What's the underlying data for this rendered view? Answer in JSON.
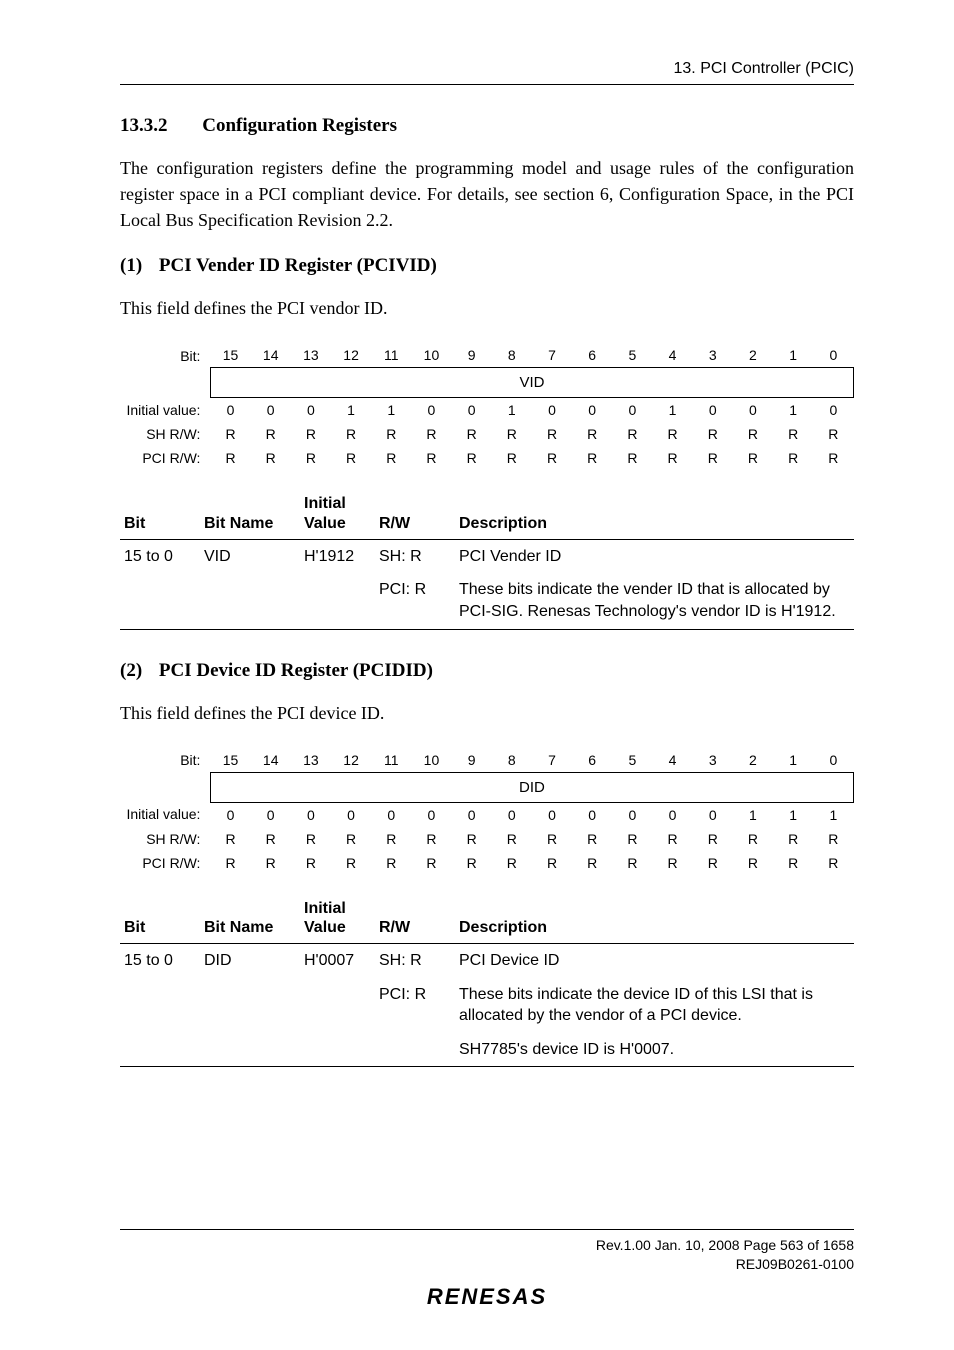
{
  "header": {
    "top_right": "13.   PCI Controller (PCIC)"
  },
  "section": {
    "number": "13.3.2",
    "title": "Configuration Registers",
    "paragraph": "The configuration registers define the programming model and usage rules of the configuration register space in a PCI compliant device. For details, see section 6, Configuration Space, in the PCI Local Bus Specification Revision 2.2."
  },
  "reg1": {
    "heading_num": "(1)",
    "heading_title": "PCI Vender ID Register (PCIVID)",
    "intro": "This field defines the PCI vendor ID.",
    "bit_label": "Bit:",
    "bit_numbers": [
      "15",
      "14",
      "13",
      "12",
      "11",
      "10",
      "9",
      "8",
      "7",
      "6",
      "5",
      "4",
      "3",
      "2",
      "1",
      "0"
    ],
    "field_name": "VID",
    "init_label": "Initial value:",
    "init_values": [
      "0",
      "0",
      "0",
      "1",
      "1",
      "0",
      "0",
      "1",
      "0",
      "0",
      "0",
      "1",
      "0",
      "0",
      "1",
      "0"
    ],
    "sh_label": "SH R/W:",
    "sh_values": [
      "R",
      "R",
      "R",
      "R",
      "R",
      "R",
      "R",
      "R",
      "R",
      "R",
      "R",
      "R",
      "R",
      "R",
      "R",
      "R"
    ],
    "pci_label": "PCI R/W:",
    "pci_values": [
      "R",
      "R",
      "R",
      "R",
      "R",
      "R",
      "R",
      "R",
      "R",
      "R",
      "R",
      "R",
      "R",
      "R",
      "R",
      "R"
    ],
    "desc_headers": {
      "bit": "Bit",
      "name": "Bit Name",
      "value": "Initial\nValue",
      "rw": "R/W",
      "desc": "Description"
    },
    "desc_rows": [
      {
        "bit": "15 to 0",
        "name": "VID",
        "value": "H'1912",
        "rw": "SH: R",
        "desc": "PCI Vender ID"
      },
      {
        "bit": "",
        "name": "",
        "value": "",
        "rw": "PCI: R",
        "desc": "These bits indicate the vender ID that is allocated by PCI-SIG. Renesas Technology's vendor ID is H'1912."
      }
    ]
  },
  "reg2": {
    "heading_num": "(2)",
    "heading_title": "PCI Device ID Register (PCIDID)",
    "intro": "This field defines the PCI device ID.",
    "bit_label": "Bit:",
    "bit_numbers": [
      "15",
      "14",
      "13",
      "12",
      "11",
      "10",
      "9",
      "8",
      "7",
      "6",
      "5",
      "4",
      "3",
      "2",
      "1",
      "0"
    ],
    "field_name": "DID",
    "init_label": "Initial value:",
    "init_values": [
      "0",
      "0",
      "0",
      "0",
      "0",
      "0",
      "0",
      "0",
      "0",
      "0",
      "0",
      "0",
      "0",
      "1",
      "1",
      "1"
    ],
    "sh_label": "SH R/W:",
    "sh_values": [
      "R",
      "R",
      "R",
      "R",
      "R",
      "R",
      "R",
      "R",
      "R",
      "R",
      "R",
      "R",
      "R",
      "R",
      "R",
      "R"
    ],
    "pci_label": "PCI R/W:",
    "pci_values": [
      "R",
      "R",
      "R",
      "R",
      "R",
      "R",
      "R",
      "R",
      "R",
      "R",
      "R",
      "R",
      "R",
      "R",
      "R",
      "R"
    ],
    "desc_headers": {
      "bit": "Bit",
      "name": "Bit Name",
      "value": "Initial\nValue",
      "rw": "R/W",
      "desc": "Description"
    },
    "desc_rows": [
      {
        "bit": "15 to 0",
        "name": "DID",
        "value": "H'0007",
        "rw": "SH: R",
        "desc": "PCI Device ID"
      },
      {
        "bit": "",
        "name": "",
        "value": "",
        "rw": "PCI: R",
        "desc": "These bits indicate the device ID of this LSI that is allocated by the vendor of a PCI device."
      },
      {
        "bit": "",
        "name": "",
        "value": "",
        "rw": "",
        "desc": "SH7785's device ID is H'0007."
      }
    ]
  },
  "footer": {
    "line1": "Rev.1.00  Jan. 10, 2008  Page 563 of 1658",
    "line2": "REJ09B0261-0100",
    "logo": "RENESAS"
  },
  "style": {
    "colors": {
      "text": "#000000",
      "bg": "#ffffff",
      "rule": "#000000"
    },
    "fonts": {
      "body": "Times New Roman",
      "ui": "Arial"
    }
  }
}
